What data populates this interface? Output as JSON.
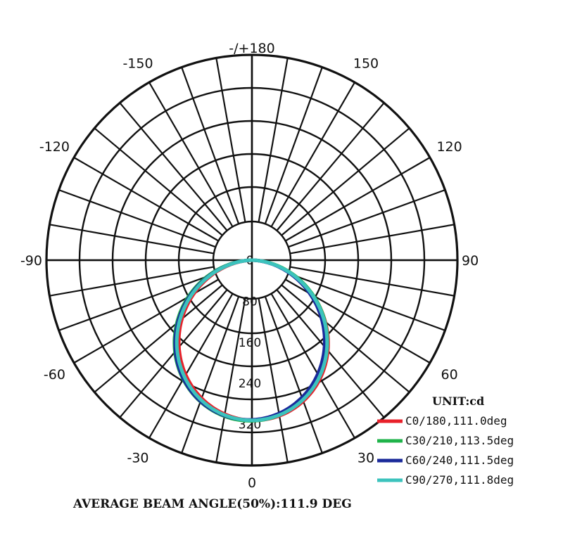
{
  "chart_data": {
    "type": "polar",
    "angle_ticks": [
      {
        "label": "-/+180",
        "angle": 180
      },
      {
        "label": "-150",
        "angle": -150
      },
      {
        "label": "150",
        "angle": 150
      },
      {
        "label": "-120",
        "angle": -120
      },
      {
        "label": "120",
        "angle": 120
      },
      {
        "label": "-90",
        "angle": -90
      },
      {
        "label": "90",
        "angle": 90
      },
      {
        "label": "-60",
        "angle": -60
      },
      {
        "label": "60",
        "angle": 60
      },
      {
        "label": "-30",
        "angle": -30
      },
      {
        "label": "30",
        "angle": 30
      },
      {
        "label": "0",
        "angle": 0
      }
    ],
    "radial_ticks": [
      {
        "label": "0",
        "value": 0
      },
      {
        "label": "80",
        "value": 80
      },
      {
        "label": "160",
        "value": 160
      },
      {
        "label": "240",
        "value": 240
      },
      {
        "label": "320",
        "value": 320
      }
    ],
    "radial_max": 400,
    "gamma_step": 10,
    "legend_title": "UNIT:cd",
    "series": [
      {
        "name": "C0/180,111.0deg",
        "color": "#e8202a",
        "peak": 312,
        "beam": 111.0,
        "skew": 0.03
      },
      {
        "name": "C30/210,113.5deg",
        "color": "#1fb34a",
        "peak": 313,
        "beam": 113.5,
        "skew": -0.02
      },
      {
        "name": "C60/240,111.5deg",
        "color": "#1a2a9a",
        "peak": 311,
        "beam": 111.5,
        "skew": -0.04
      },
      {
        "name": "C90/270,111.8deg",
        "color": "#3cc3bd",
        "peak": 312,
        "beam": 111.8,
        "skew": 0.0
      }
    ],
    "footer": "AVERAGE BEAM ANGLE(50%):111.9 DEG"
  }
}
